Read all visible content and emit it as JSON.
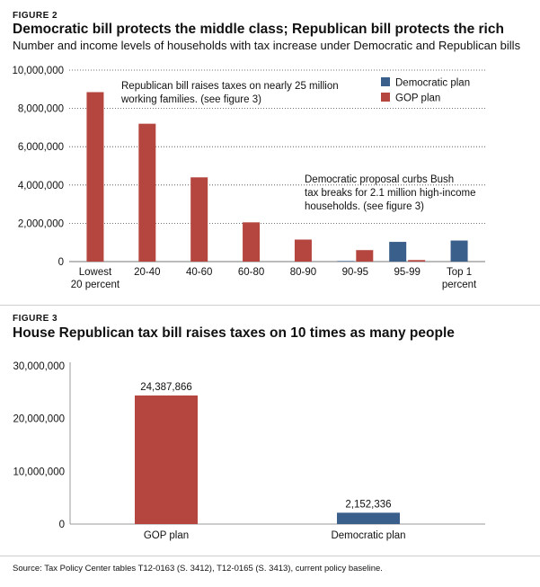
{
  "colors": {
    "democratic": "#3a5f8a",
    "gop": "#b5463f"
  },
  "figure2": {
    "label": "FIGURE 2",
    "title": "Democratic bill protects the middle class; Republican bill protects the rich",
    "subtitle": "Number and income levels of households with tax increase under Democratic and Republican bills",
    "annotation_gop": [
      "Republican bill raises taxes on nearly 25 million",
      "working families. (see figure 3)"
    ],
    "annotation_dem": [
      "Democratic proposal curbs Bush",
      "tax breaks for 2.1 million high-income",
      "households. (see figure 3)"
    ],
    "legend": [
      {
        "label": "Democratic plan",
        "color": "#3a5f8a"
      },
      {
        "label": "GOP plan",
        "color": "#b5463f"
      }
    ],
    "y_ticks": [
      "10,000,000",
      "8,000,000",
      "6,000,000",
      "4,000,000",
      "2,000,000",
      "0"
    ],
    "category_labels": [
      [
        "Lowest",
        "20 percent"
      ],
      [
        "20-40"
      ],
      [
        "40-60"
      ],
      [
        "60-80"
      ],
      [
        "80-90"
      ],
      [
        "90-95"
      ],
      [
        "95-99"
      ],
      [
        "Top 1",
        "percent"
      ]
    ]
  },
  "figure3": {
    "label": "FIGURE 3",
    "title": "House Republican tax bill raises taxes on 10 times as many people",
    "y_ticks": [
      "30,000,000",
      "20,000,000",
      "10,000,000",
      "0"
    ],
    "category_labels": [
      "GOP plan",
      "Democratic plan"
    ],
    "value_labels": [
      "24,387,866",
      "2,152,336"
    ]
  },
  "source": "Source: Tax Policy Center tables T12-0163 (S. 3412), T12-0165 (S. 3413), current policy baseline.",
  "chart_data": [
    {
      "type": "bar",
      "title": "Democratic bill protects the middle class; Republican bill protects the rich",
      "subtitle": "Number and income levels of households with tax increase under Democratic and Republican bills",
      "categories": [
        "Lowest 20 percent",
        "20-40",
        "40-60",
        "60-80",
        "80-90",
        "90-95",
        "95-99",
        "Top 1 percent"
      ],
      "series": [
        {
          "name": "GOP plan",
          "values": [
            8850000,
            7200000,
            4400000,
            2050000,
            1150000,
            600000,
            80000,
            0
          ]
        },
        {
          "name": "Democratic plan",
          "values": [
            0,
            0,
            0,
            0,
            0,
            30000,
            1030000,
            1100000
          ]
        }
      ],
      "ylim": [
        0,
        10000000
      ],
      "grid": "dotted-horizontal",
      "legend_position": "top-right"
    },
    {
      "type": "bar",
      "title": "House Republican tax bill raises taxes on 10 times as many people",
      "categories": [
        "GOP plan",
        "Democratic plan"
      ],
      "values": [
        24387866,
        2152336
      ],
      "ylim": [
        0,
        30000000
      ]
    }
  ]
}
